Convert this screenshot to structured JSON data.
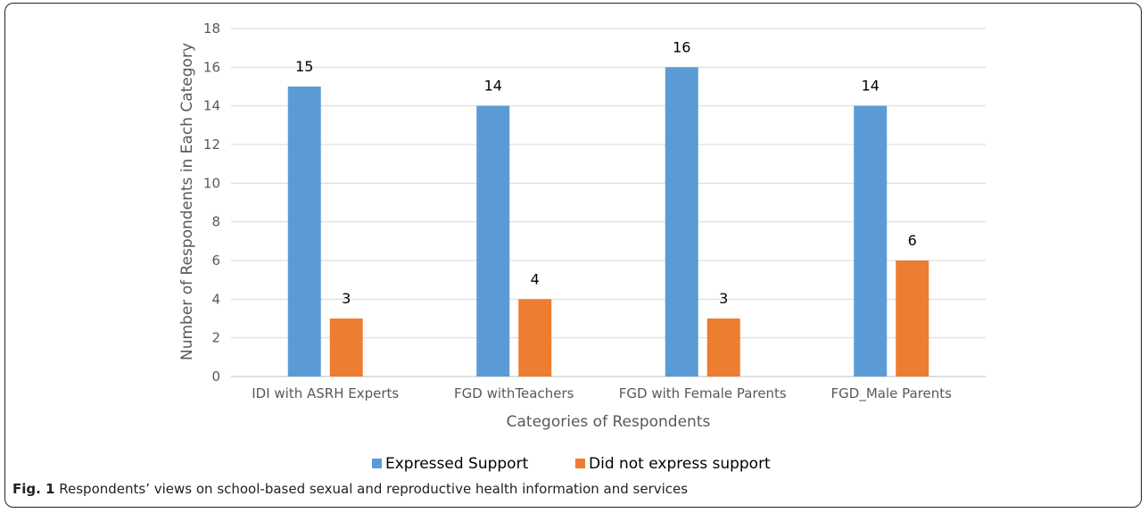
{
  "chart_data": {
    "type": "bar",
    "categories": [
      "IDI with ASRH Experts",
      "FGD withTeachers",
      "FGD with Female Parents",
      "FGD_Male Parents"
    ],
    "series": [
      {
        "name": "Expressed Support",
        "values": [
          15,
          14,
          16,
          14
        ],
        "color": "#5B9BD5"
      },
      {
        "name": "Did not express support",
        "values": [
          3,
          4,
          3,
          6
        ],
        "color": "#ED7D31"
      }
    ],
    "xlabel": "Categories of Respondents",
    "ylabel": "Number of Respondents in Each Category",
    "ylim": [
      0,
      18
    ],
    "yticks": [
      0,
      2,
      4,
      6,
      8,
      10,
      12,
      14,
      16,
      18
    ],
    "grid": true,
    "legend_position": "bottom"
  },
  "caption": {
    "label": "Fig. 1",
    "text": " Respondents’ views on school-based sexual and reproductive health information and services"
  }
}
